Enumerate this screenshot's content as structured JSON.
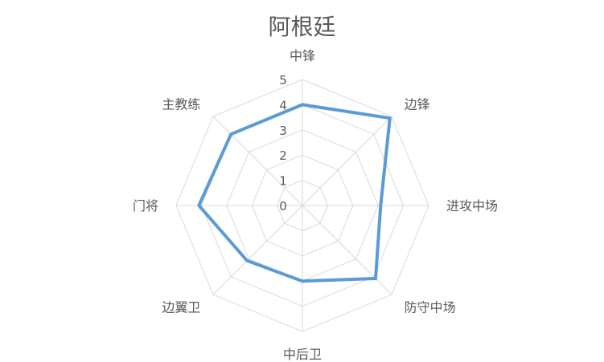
{
  "chart_data": {
    "type": "radar",
    "title": "阿根廷",
    "categories": [
      "中锋",
      "边锋",
      "进攻中场",
      "防守中场",
      "中后卫",
      "边翼卫",
      "门将",
      "主教练"
    ],
    "rlim": [
      0,
      5
    ],
    "ticks": [
      "0",
      "1",
      "2",
      "3",
      "4",
      "5"
    ],
    "grid": true,
    "legend": "none",
    "series": [
      {
        "values": [
          4.0,
          4.9,
          3.1,
          4.1,
          3.0,
          3.1,
          4.1,
          4.0
        ],
        "color": "#5b9bd5"
      }
    ]
  }
}
